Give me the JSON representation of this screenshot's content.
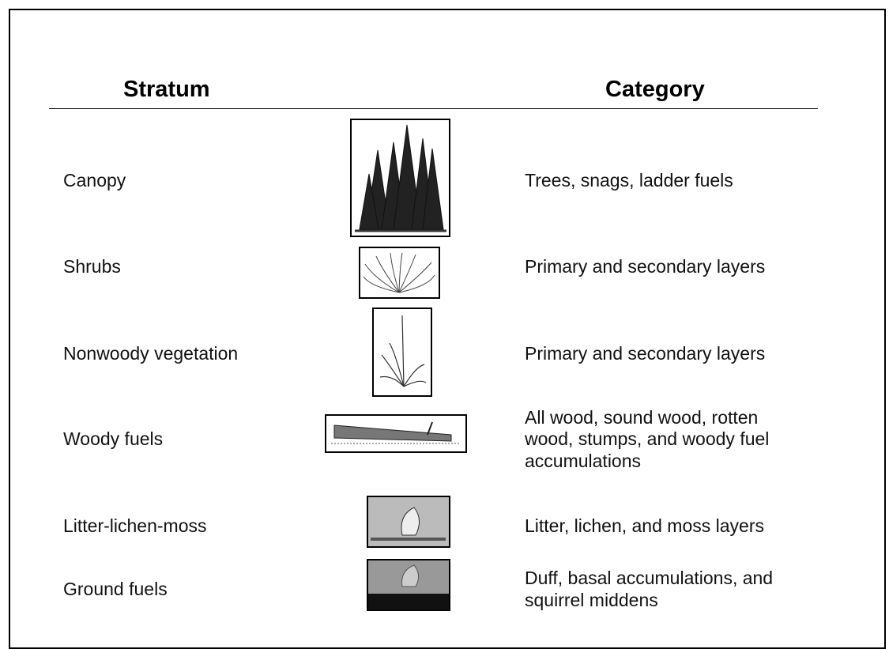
{
  "header": {
    "columns": [
      "Stratum",
      "Category"
    ]
  },
  "rows": [
    {
      "stratum": "Canopy",
      "category_lines": [
        "Trees, snags, ladder fuels"
      ]
    },
    {
      "stratum": "Shrubs",
      "category_lines": [
        "Primary and secondary layers"
      ]
    },
    {
      "stratum": "Nonwoody vegetation",
      "category_lines": [
        "Primary and secondary layers"
      ]
    },
    {
      "stratum": "Woody fuels",
      "category_lines": [
        "All wood, sound wood, rotten",
        "wood, stumps, and woody fuel",
        "accumulations"
      ]
    },
    {
      "stratum": "Litter-lichen-moss",
      "category_lines": [
        "Litter, lichen, and moss layers"
      ]
    },
    {
      "stratum": "Ground fuels",
      "category_lines": [
        "Duff, basal accumulations, and",
        "squirrel middens"
      ]
    }
  ]
}
